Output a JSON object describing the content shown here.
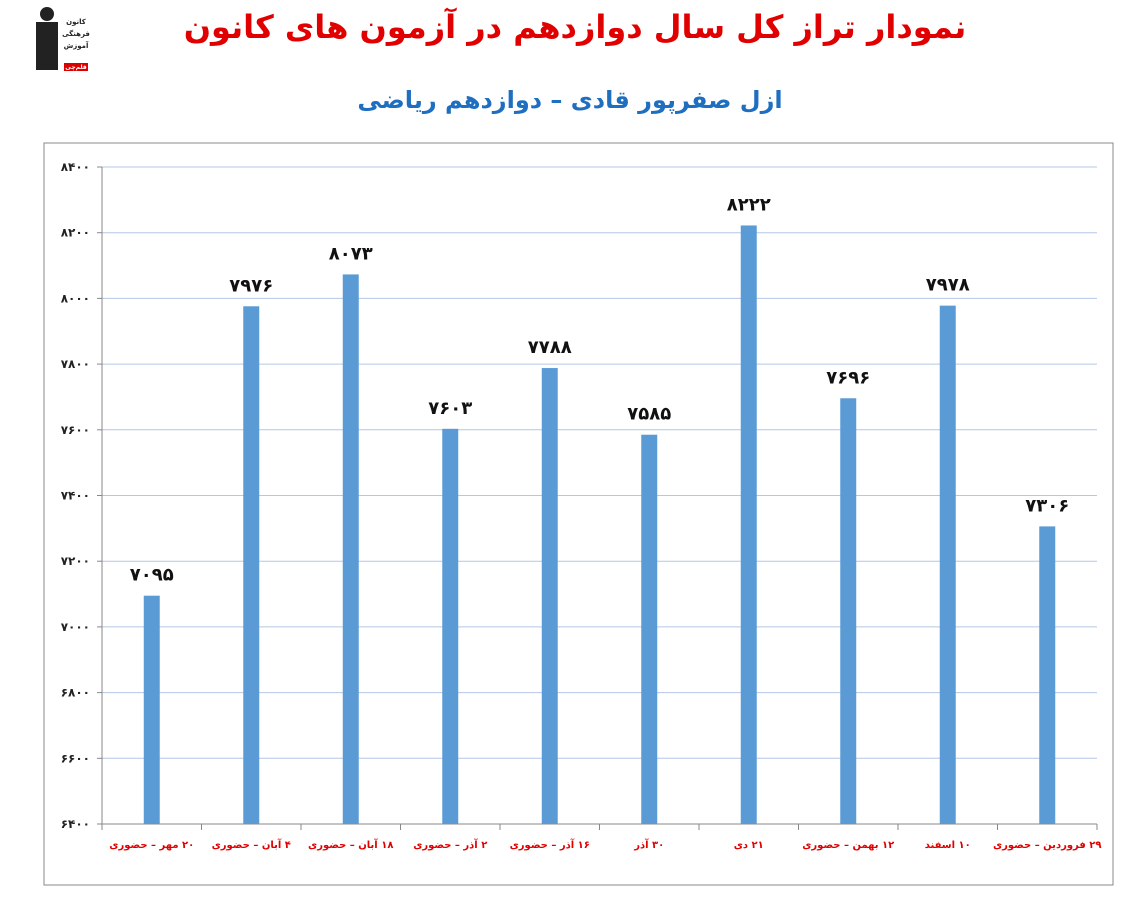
{
  "logo": [
    "کانون",
    "فرهنگی",
    "آموزش",
    "قلم‌چی"
  ],
  "chart_data": {
    "type": "bar",
    "title": "نمودار تراز کل سال دوازدهم در آزمون های کانون",
    "subtitle": "ازل صفرپور قادی – دوازدهم ریاضی",
    "categories": [
      "۲۰ مهر – حضوری",
      "۴ آبان – حضوری",
      "۱۸ آبان – حضوری",
      "۲ آذر – حضوری",
      "۱۶ آذر – حضوری",
      "۳۰ آذر",
      "۲۱ دی",
      "۱۲ بهمن – حضوری",
      "۱۰ اسفند",
      "۲۹ فروردین – حضوری"
    ],
    "values": [
      7095,
      7976,
      8073,
      7603,
      7788,
      7585,
      8222,
      7696,
      7978,
      7306
    ],
    "value_labels": [
      "۷۰۹۵",
      "۷۹۷۶",
      "۸۰۷۳",
      "۷۶۰۳",
      "۷۷۸۸",
      "۷۵۸۵",
      "۸۲۲۲",
      "۷۶۹۶",
      "۷۹۷۸",
      "۷۳۰۶"
    ],
    "color": "#5b9bd5",
    "ylim": [
      6400,
      8400
    ],
    "yticks": [
      {
        "value": 6400,
        "label": "۶۴۰۰"
      },
      {
        "value": 6600,
        "label": "۶۶۰۰"
      },
      {
        "value": 6800,
        "label": "۶۸۰۰"
      },
      {
        "value": 7000,
        "label": "۷۰۰۰"
      },
      {
        "value": 7200,
        "label": "۷۲۰۰"
      },
      {
        "value": 7400,
        "label": "۷۴۰۰"
      },
      {
        "value": 7600,
        "label": "۷۶۰۰"
      },
      {
        "value": 7800,
        "label": "۷۸۰۰"
      },
      {
        "value": 8000,
        "label": "۸۰۰۰"
      },
      {
        "value": 8200,
        "label": "۸۲۰۰"
      },
      {
        "value": 8400,
        "label": "۸۴۰۰"
      }
    ],
    "grid": true
  }
}
